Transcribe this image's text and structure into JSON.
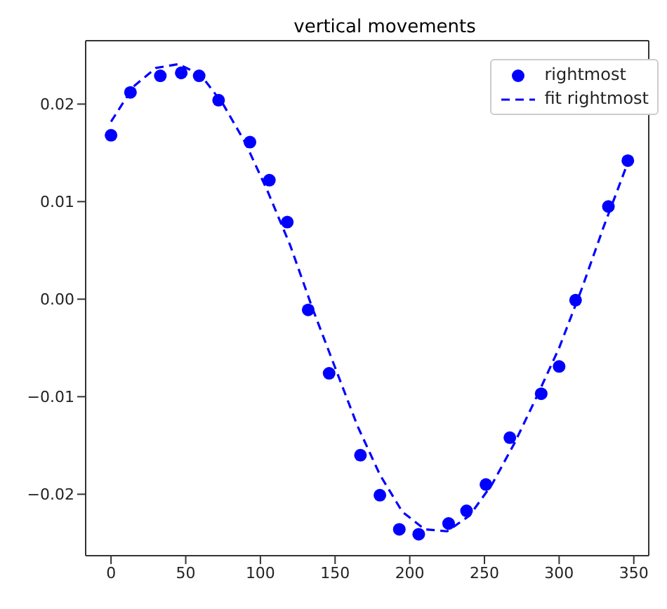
{
  "chart_data": {
    "type": "scatter",
    "title": "vertical movements",
    "xlim": [
      -17,
      360
    ],
    "xticks": [
      0,
      50,
      100,
      150,
      200,
      250,
      300,
      350
    ],
    "ylim": [
      -0.0263,
      0.0265
    ],
    "yticks": [
      {
        "value": -0.02,
        "label": "−0.02"
      },
      {
        "value": -0.01,
        "label": "−0.01"
      },
      {
        "value": 0,
        "label": "0.00"
      },
      {
        "value": 0.01,
        "label": "0.01"
      },
      {
        "value": 0.02,
        "label": "0.02"
      }
    ],
    "grid": false,
    "legend": "top right",
    "series": [
      {
        "name": "rightmost",
        "color": "#0000ff",
        "marker": "circle",
        "x": [
          0,
          13,
          33,
          47,
          59,
          72,
          93,
          106,
          118,
          132,
          146,
          167,
          180,
          193,
          206,
          226,
          238,
          251,
          267,
          288,
          300,
          311,
          333,
          346
        ],
        "values": [
          0.0168,
          0.0212,
          0.0229,
          0.0232,
          0.0229,
          0.0204,
          0.0161,
          0.0122,
          0.0079,
          -0.0011,
          -0.0076,
          -0.016,
          -0.0201,
          -0.0236,
          -0.0241,
          -0.023,
          -0.0217,
          -0.019,
          -0.0142,
          -0.0097,
          -0.0069,
          -0.0001,
          0.0095,
          0.0142
        ]
      },
      {
        "name": "fit rightmost",
        "type": "line",
        "color": "#0000ff",
        "marker": "none",
        "line_style": "dashed",
        "x": [
          0,
          15,
          30,
          45,
          60,
          75,
          90,
          105,
          120,
          135,
          150,
          165,
          180,
          195,
          210,
          225,
          240,
          255,
          270,
          285,
          300,
          315,
          330,
          346
        ],
        "values": [
          0.0182,
          0.0218,
          0.0237,
          0.0241,
          0.023,
          0.02,
          0.016,
          0.011,
          0.0055,
          -0.001,
          -0.007,
          -0.013,
          -0.018,
          -0.0218,
          -0.0236,
          -0.0238,
          -0.0222,
          -0.019,
          -0.0148,
          -0.01,
          -0.005,
          0.001,
          0.0075,
          0.014
        ]
      }
    ]
  }
}
